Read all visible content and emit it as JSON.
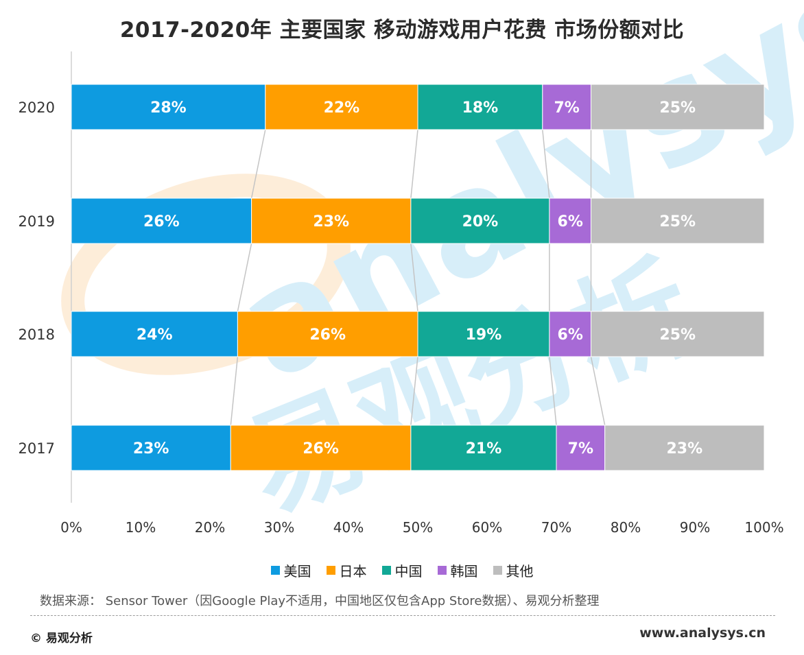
{
  "title": "2017-2020年 主要国家 移动游戏用户花费 市场份额对比",
  "chart_data": {
    "type": "bar",
    "orientation": "horizontal",
    "stacked": true,
    "percent": true,
    "title": "2017-2020年 主要国家 移动游戏用户花费 市场份额对比",
    "categories": [
      "2020",
      "2019",
      "2018",
      "2017"
    ],
    "series": [
      {
        "name": "美国",
        "color": "#0E9BE0",
        "values": [
          28,
          26,
          24,
          23
        ]
      },
      {
        "name": "日本",
        "color": "#FF9E00",
        "values": [
          22,
          23,
          26,
          26
        ]
      },
      {
        "name": "中国",
        "color": "#12A896",
        "values": [
          18,
          20,
          19,
          21
        ]
      },
      {
        "name": "韩国",
        "color": "#A76AD6",
        "values": [
          7,
          6,
          6,
          7
        ]
      },
      {
        "name": "其他",
        "color": "#BDBDBD",
        "values": [
          25,
          25,
          25,
          23
        ]
      }
    ],
    "x_ticks": [
      "0%",
      "10%",
      "20%",
      "30%",
      "40%",
      "50%",
      "60%",
      "70%",
      "80%",
      "90%",
      "100%"
    ],
    "xlim": [
      0,
      100
    ],
    "grid": false,
    "legend_position": "bottom",
    "connector_lines": true
  },
  "watermark": {
    "brand": "analysys",
    "name": "易观分析"
  },
  "source": "数据来源： Sensor Tower（因Google Play不适用，中国地区仅包含App Store数据）、易观分析整理",
  "copyright": "© 易观分析",
  "website": "www.analysys.cn"
}
